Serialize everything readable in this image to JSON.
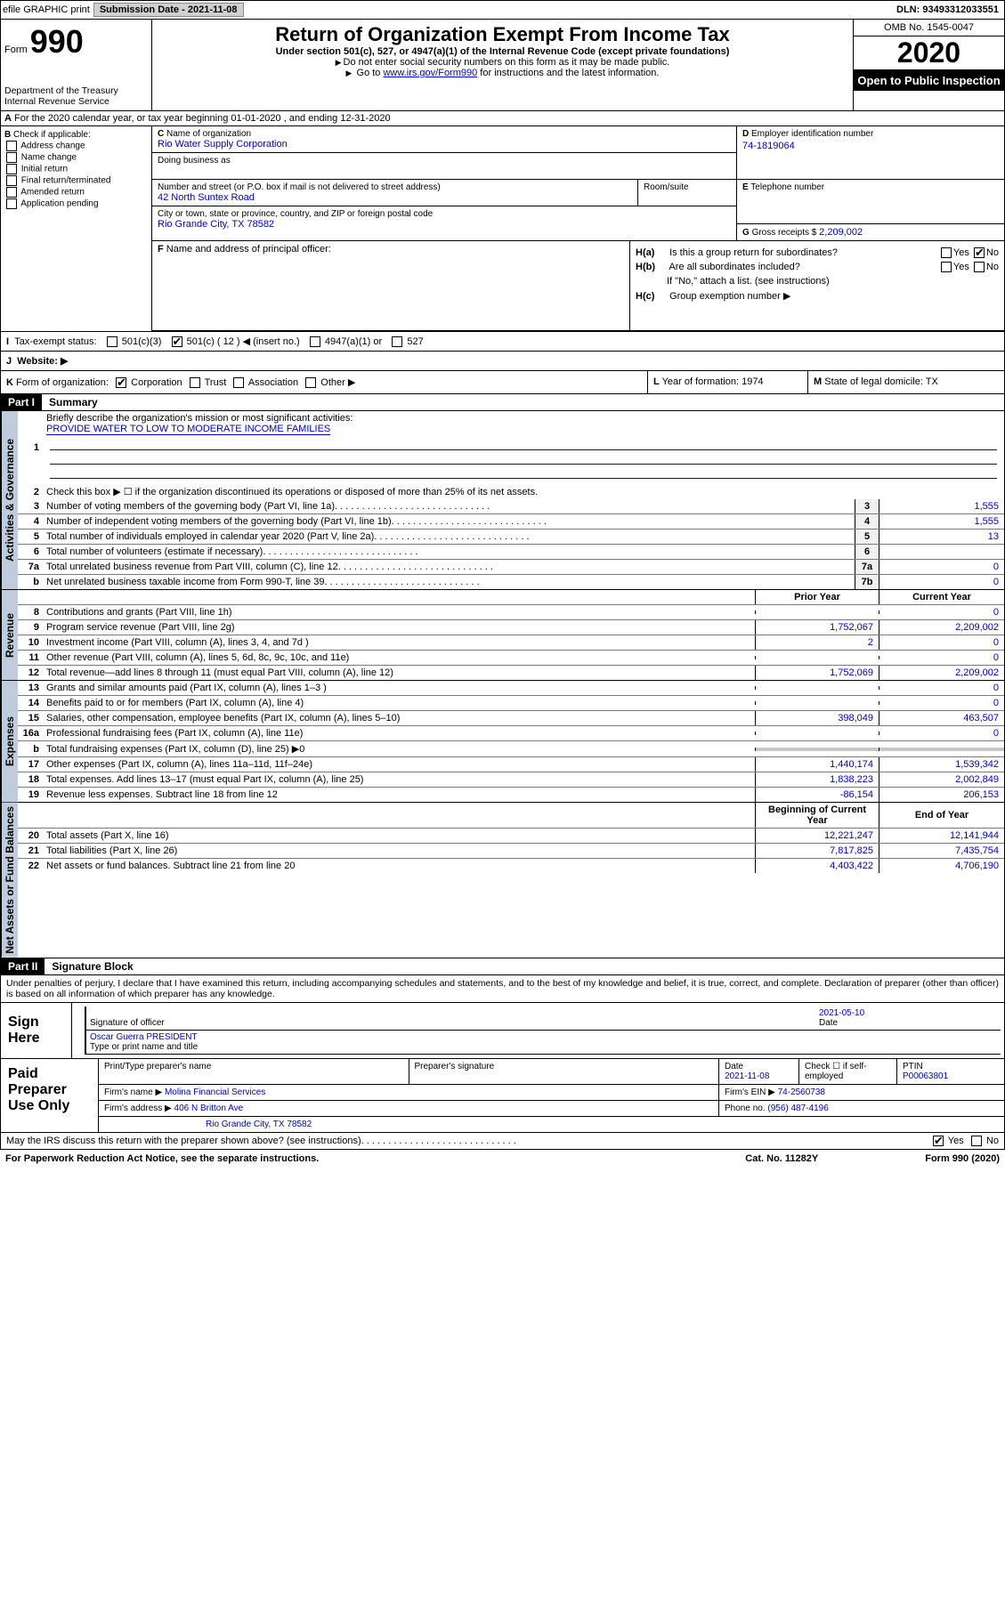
{
  "topbar": {
    "efile": "efile GRAPHIC print",
    "subdate_label": "Submission Date - ",
    "subdate": "2021-11-08",
    "dln_label": "DLN: ",
    "dln": "93493312033551"
  },
  "header": {
    "form_label": "Form",
    "form_no": "990",
    "dept": "Department of the Treasury\nInternal Revenue Service",
    "title": "Return of Organization Exempt From Income Tax",
    "subtitle": "Under section 501(c), 527, or 4947(a)(1) of the Internal Revenue Code (except private foundations)",
    "note1": "Do not enter social security numbers on this form as it may be made public.",
    "note2_a": "Go to ",
    "note2_link": "www.irs.gov/Form990",
    "note2_b": " for instructions and the latest information.",
    "omb": "OMB No. 1545-0047",
    "year": "2020",
    "inspection": "Open to Public Inspection"
  },
  "rowA": "For the 2020 calendar year, or tax year beginning 01-01-2020   , and ending 12-31-2020",
  "rowA_prefix": "A",
  "B": {
    "label": "Check if applicable:",
    "items": [
      "Address change",
      "Name change",
      "Initial return",
      "Final return/terminated",
      "Amended return",
      "Application pending"
    ]
  },
  "C": {
    "name_label": "Name of organization",
    "name": "Rio Water Supply Corporation",
    "dba_label": "Doing business as",
    "dba": "",
    "street_label": "Number and street (or P.O. box if mail is not delivered to street address)",
    "street": "42 North Suntex Road",
    "room_label": "Room/suite",
    "city_label": "City or town, state or province, country, and ZIP or foreign postal code",
    "city": "Rio Grande City, TX  78582"
  },
  "D": {
    "ein_label": "Employer identification number",
    "ein": "74-1819064",
    "phone_label": "Telephone number",
    "phone": "",
    "gross_label": "Gross receipts $ ",
    "gross": "2,209,002"
  },
  "F": {
    "label": "Name and address of principal officer:"
  },
  "H": {
    "a_label": "Is this a group return for subordinates?",
    "b_label": "Are all subordinates included?",
    "b_note": "If \"No,\" attach a list. (see instructions)",
    "c_label": "Group exemption number ▶",
    "yes": "Yes",
    "no": "No"
  },
  "I": {
    "label": "Tax-exempt status:",
    "o1": "501(c)(3)",
    "o2": "501(c) ( 12 ) ◀ (insert no.)",
    "o3": "4947(a)(1) or",
    "o4": "527"
  },
  "J": {
    "label": "Website: ▶"
  },
  "K": {
    "label": "Form of organization:",
    "o1": "Corporation",
    "o2": "Trust",
    "o3": "Association",
    "o4": "Other ▶"
  },
  "L": {
    "label": "Year of formation: ",
    "val": "1974"
  },
  "M": {
    "label": "State of legal domicile: ",
    "val": "TX"
  },
  "part1": {
    "badge": "Part I",
    "title": "Summary"
  },
  "summary": {
    "vert1": "Activities & Governance",
    "vert2": "Revenue",
    "vert3": "Expenses",
    "vert4": "Net Assets or Fund Balances",
    "l1_label": "Briefly describe the organization's mission or most significant activities:",
    "l1_val": "PROVIDE WATER TO LOW TO MODERATE INCOME FAMILIES",
    "l2": "Check this box ▶ ☐ if the organization discontinued its operations or disposed of more than 25% of its net assets.",
    "lines_gov": [
      {
        "n": "3",
        "t": "Number of voting members of the governing body (Part VI, line 1a)",
        "box": "3",
        "v": "1,555"
      },
      {
        "n": "4",
        "t": "Number of independent voting members of the governing body (Part VI, line 1b)",
        "box": "4",
        "v": "1,555"
      },
      {
        "n": "5",
        "t": "Total number of individuals employed in calendar year 2020 (Part V, line 2a)",
        "box": "5",
        "v": "13"
      },
      {
        "n": "6",
        "t": "Total number of volunteers (estimate if necessary)",
        "box": "6",
        "v": ""
      },
      {
        "n": "7a",
        "t": "Total unrelated business revenue from Part VIII, column (C), line 12",
        "box": "7a",
        "v": "0"
      },
      {
        "n": "b",
        "t": "Net unrelated business taxable income from Form 990-T, line 39",
        "box": "7b",
        "v": "0"
      }
    ],
    "hdr_prior": "Prior Year",
    "hdr_curr": "Current Year",
    "lines_rev": [
      {
        "n": "8",
        "t": "Contributions and grants (Part VIII, line 1h)",
        "p": "",
        "c": "0"
      },
      {
        "n": "9",
        "t": "Program service revenue (Part VIII, line 2g)",
        "p": "1,752,067",
        "c": "2,209,002"
      },
      {
        "n": "10",
        "t": "Investment income (Part VIII, column (A), lines 3, 4, and 7d )",
        "p": "2",
        "c": "0"
      },
      {
        "n": "11",
        "t": "Other revenue (Part VIII, column (A), lines 5, 6d, 8c, 9c, 10c, and 11e)",
        "p": "",
        "c": "0"
      },
      {
        "n": "12",
        "t": "Total revenue—add lines 8 through 11 (must equal Part VIII, column (A), line 12)",
        "p": "1,752,069",
        "c": "2,209,002"
      }
    ],
    "lines_exp": [
      {
        "n": "13",
        "t": "Grants and similar amounts paid (Part IX, column (A), lines 1–3 )",
        "p": "",
        "c": "0"
      },
      {
        "n": "14",
        "t": "Benefits paid to or for members (Part IX, column (A), line 4)",
        "p": "",
        "c": "0"
      },
      {
        "n": "15",
        "t": "Salaries, other compensation, employee benefits (Part IX, column (A), lines 5–10)",
        "p": "398,049",
        "c": "463,507"
      },
      {
        "n": "16a",
        "t": "Professional fundraising fees (Part IX, column (A), line 11e)",
        "p": "",
        "c": "0"
      },
      {
        "n": "b",
        "t": "Total fundraising expenses (Part IX, column (D), line 25) ▶0",
        "p": "SHADE",
        "c": "SHADE"
      },
      {
        "n": "17",
        "t": "Other expenses (Part IX, column (A), lines 11a–11d, 11f–24e)",
        "p": "1,440,174",
        "c": "1,539,342"
      },
      {
        "n": "18",
        "t": "Total expenses. Add lines 13–17 (must equal Part IX, column (A), line 25)",
        "p": "1,838,223",
        "c": "2,002,849"
      },
      {
        "n": "19",
        "t": "Revenue less expenses. Subtract line 18 from line 12",
        "p": "-86,154",
        "c": "206,153"
      }
    ],
    "hdr_beg": "Beginning of Current Year",
    "hdr_end": "End of Year",
    "lines_net": [
      {
        "n": "20",
        "t": "Total assets (Part X, line 16)",
        "p": "12,221,247",
        "c": "12,141,944"
      },
      {
        "n": "21",
        "t": "Total liabilities (Part X, line 26)",
        "p": "7,817,825",
        "c": "7,435,754"
      },
      {
        "n": "22",
        "t": "Net assets or fund balances. Subtract line 21 from line 20",
        "p": "4,403,422",
        "c": "4,706,190"
      }
    ]
  },
  "part2": {
    "badge": "Part II",
    "title": "Signature Block"
  },
  "perjury": "Under penalties of perjury, I declare that I have examined this return, including accompanying schedules and statements, and to the best of my knowledge and belief, it is true, correct, and complete. Declaration of preparer (other than officer) is based on all information of which preparer has any knowledge.",
  "sign": {
    "left": "Sign Here",
    "sig_label": "Signature of officer",
    "date_label": "Date",
    "date": "2021-05-10",
    "name": "Oscar Guerra PRESIDENT",
    "name_label": "Type or print name and title"
  },
  "prep": {
    "left": "Paid Preparer Use Only",
    "l1": "Print/Type preparer's name",
    "l2": "Preparer's signature",
    "l3": "Date",
    "l3v": "2021-11-08",
    "l4": "Check ☐ if self-employed",
    "l5": "PTIN",
    "l5v": "P00063801",
    "firm_label": "Firm's name    ▶ ",
    "firm": "Molina Financial Services",
    "ein_label": "Firm's EIN ▶ ",
    "ein": "74-2560738",
    "addr_label": "Firm's address ▶ ",
    "addr1": "406 N Britton Ave",
    "addr2": "Rio Grande City, TX  78582",
    "phone_label": "Phone no. ",
    "phone": "(956) 487-4196"
  },
  "irs_discuss": "May the IRS discuss this return with the preparer shown above? (see instructions)",
  "footer": {
    "left": "For Paperwork Reduction Act Notice, see the separate instructions.",
    "cat": "Cat. No. 11282Y",
    "right": "Form 990 (2020)"
  }
}
